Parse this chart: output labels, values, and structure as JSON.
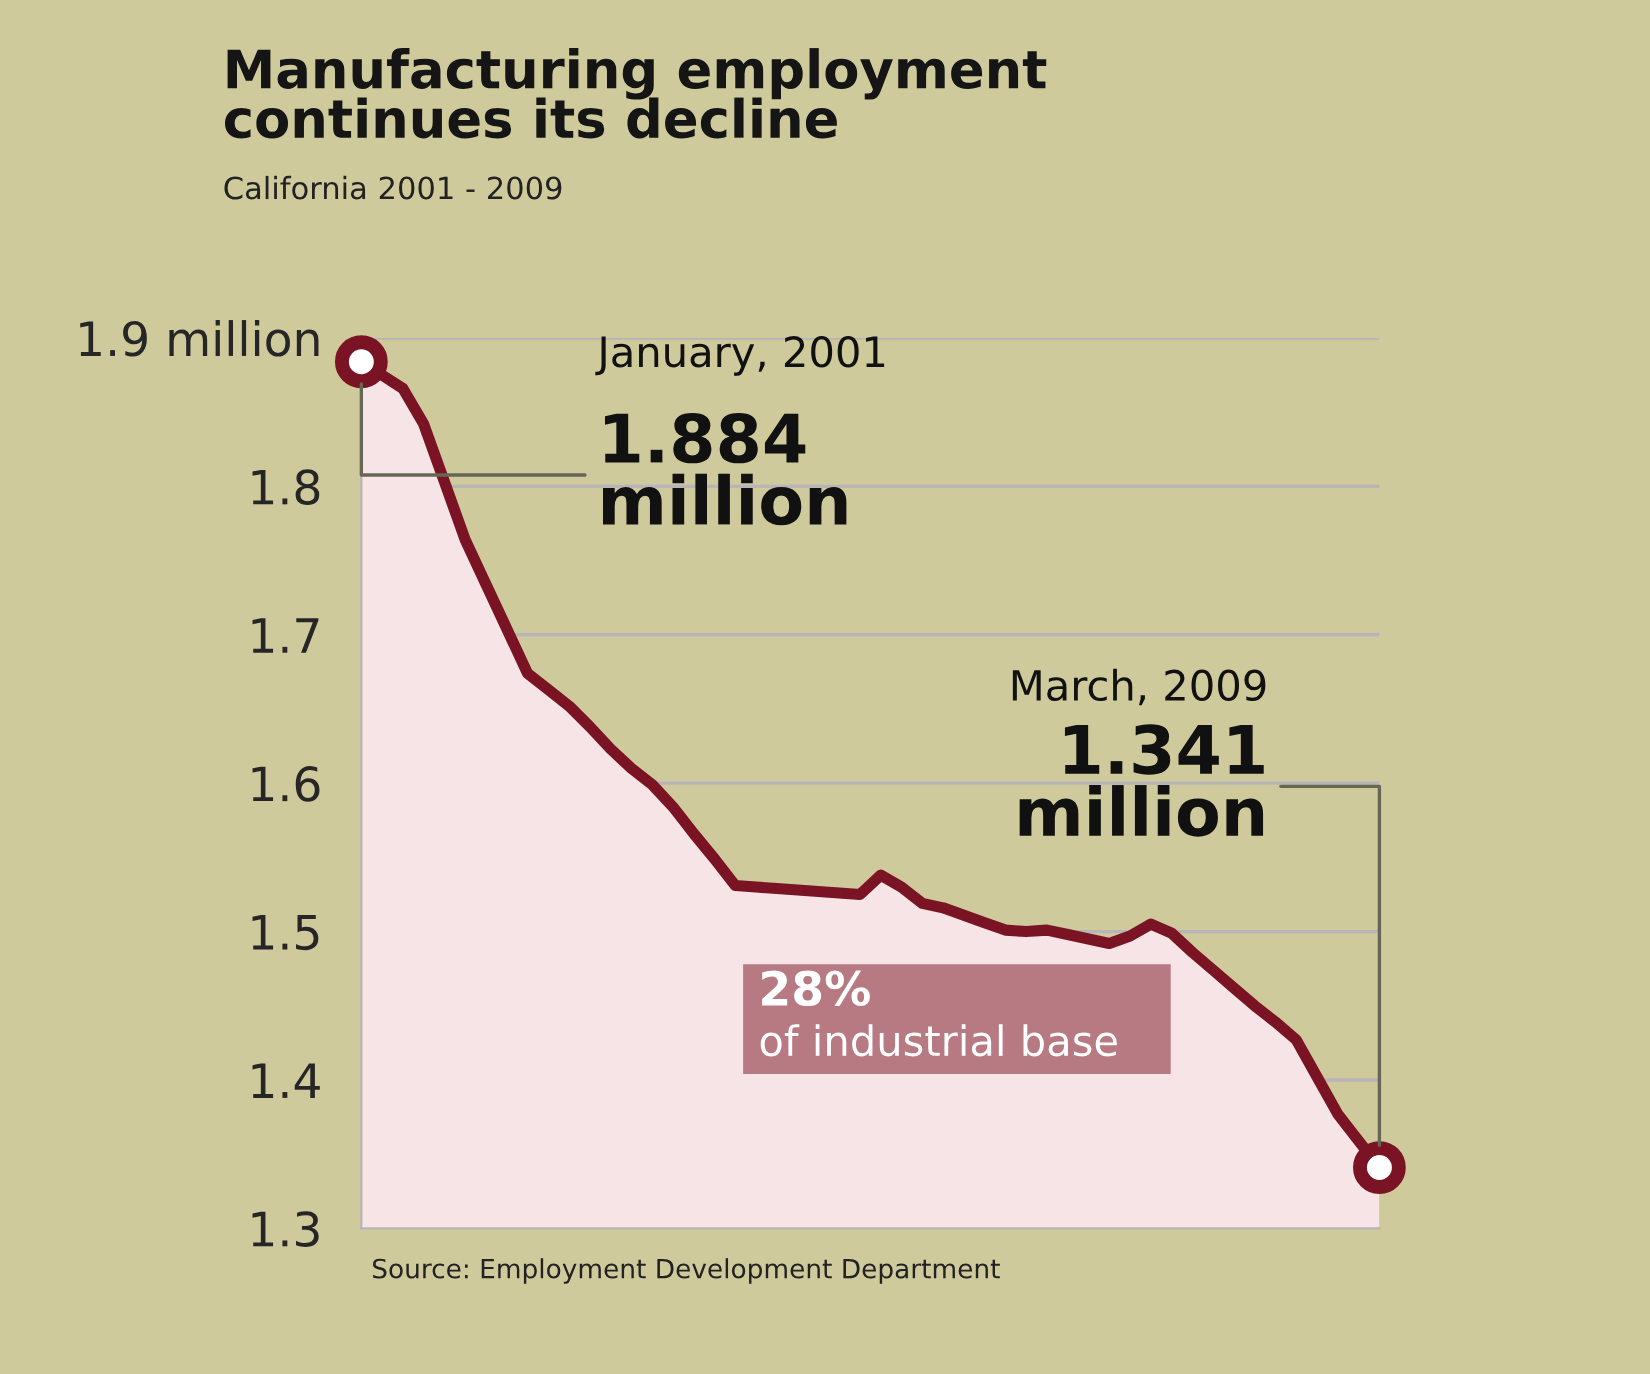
{
  "chart_data": {
    "type": "area",
    "title": "Manufacturing employment\ncontinues its decline",
    "subtitle": "California 2001 - 2009",
    "categories": [
      null,
      null,
      null,
      null,
      null,
      null,
      null,
      null,
      null,
      null,
      null,
      null,
      null,
      null,
      null,
      null,
      null,
      null,
      null,
      null,
      null,
      null,
      null,
      null,
      null,
      null,
      null,
      null,
      null,
      null,
      null,
      null,
      null,
      null,
      null,
      null,
      null,
      null,
      null,
      null,
      null,
      null,
      null,
      null,
      null,
      null,
      null,
      null,
      null,
      null
    ],
    "series": [
      {
        "color": "#7a1424",
        "values": [
          1.884,
          1.875,
          1.866,
          1.842,
          1.803,
          1.764,
          1.734,
          1.704,
          1.674,
          1.663,
          1.652,
          1.638,
          1.623,
          1.61,
          1.599,
          1.584,
          1.566,
          1.549,
          1.531,
          1.53,
          1.529,
          1.528,
          1.527,
          1.526,
          1.525,
          1.538,
          1.53,
          1.519,
          1.516,
          1.511,
          1.506,
          1.501,
          1.5,
          1.501,
          1.498,
          1.495,
          1.492,
          1.497,
          1.505,
          1.499,
          1.486,
          1.474,
          1.462,
          1.45,
          1.439,
          1.427,
          1.402,
          1.377,
          1.359,
          1.341
        ]
      }
    ],
    "ylim": [
      1.3,
      1.9
    ],
    "yticks": [
      1.3,
      1.4,
      1.5,
      1.6,
      1.7,
      1.8,
      {
        "value": 1.9,
        "label": "1.9 million"
      }
    ],
    "tick_labels": "y",
    "grid": "y",
    "marker": "none",
    "line_style": "solid",
    "annotations": [
      "January, 2001",
      "1.884\nmillion",
      "March, 2009",
      "1.341\nmillion",
      "28%",
      "of industrial base",
      "Source: Employment Development Department"
    ]
  }
}
